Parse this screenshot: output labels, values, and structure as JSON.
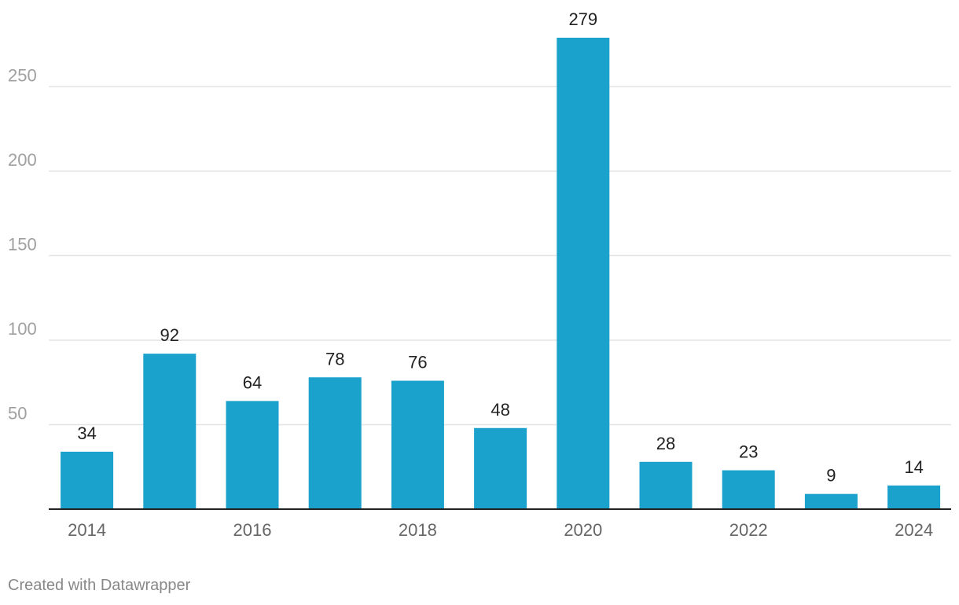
{
  "chart_data": {
    "type": "bar",
    "categories": [
      "2014",
      "2015",
      "2016",
      "2017",
      "2018",
      "2019",
      "2020",
      "2021",
      "2022",
      "2023",
      "2024"
    ],
    "values": [
      34,
      92,
      64,
      78,
      76,
      48,
      279,
      28,
      23,
      9,
      14
    ],
    "x_tick_labels": [
      "2014",
      "2016",
      "2018",
      "2020",
      "2022",
      "2024"
    ],
    "y_ticks": [
      50,
      100,
      150,
      200,
      250
    ],
    "ylim": [
      0,
      279
    ],
    "grid": true,
    "data_labels": true,
    "bar_color": "#1aa1cc",
    "title": "",
    "xlabel": "",
    "ylabel": ""
  },
  "footer": {
    "credit": "Created with Datawrapper"
  }
}
